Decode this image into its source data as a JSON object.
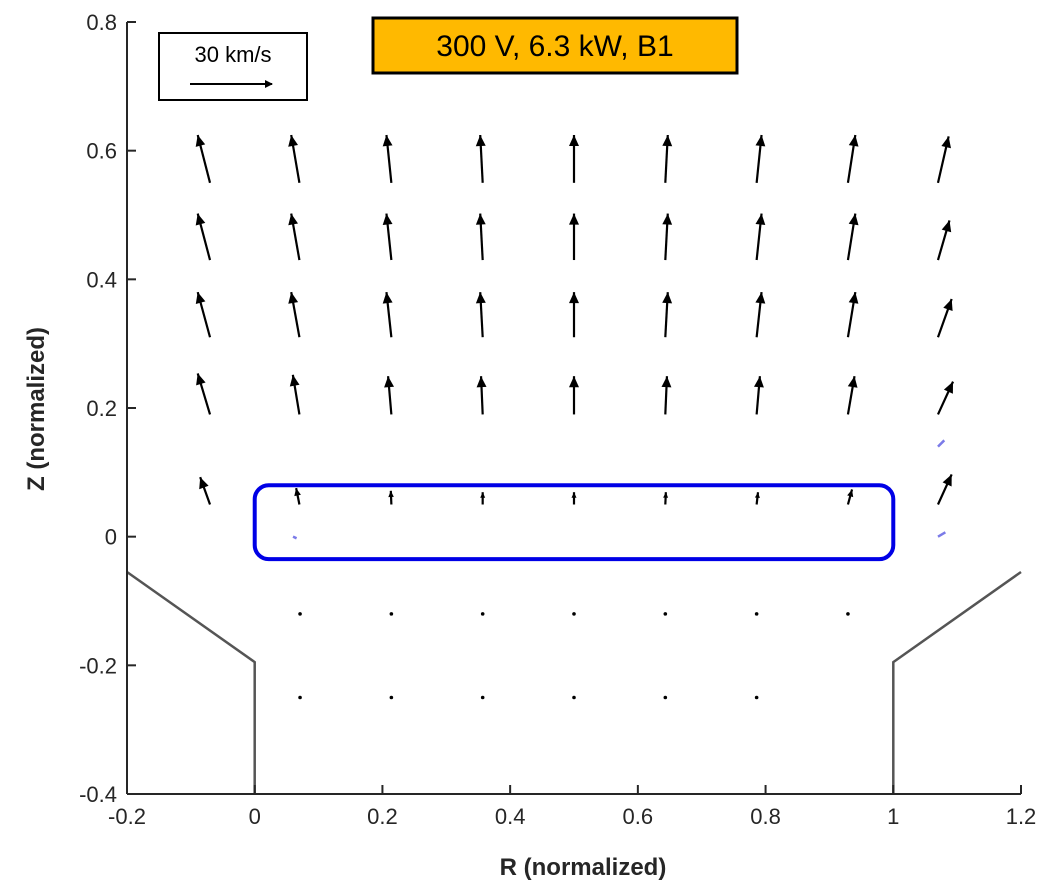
{
  "chart_data": {
    "type": "quiver",
    "title": "300 V, 6.3 kW, B1",
    "title_box_color": "#FFB900",
    "xlabel": "R (normalized)",
    "ylabel": "Z (normalized)",
    "xlim": [
      -0.2,
      1.2
    ],
    "ylim": [
      -0.4,
      0.8
    ],
    "xticks": [
      "-0.2",
      "0",
      "0.2",
      "0.4",
      "0.6",
      "0.8",
      "1",
      "1.2"
    ],
    "yticks": [
      "-0.4",
      "-0.2",
      "0",
      "0.2",
      "0.4",
      "0.6",
      "0.8"
    ],
    "grid": false,
    "scale_reference": {
      "label": "30 km/s",
      "magnitude_kms": 30
    },
    "channel_walls": [
      {
        "name": "inner-wall",
        "points": [
          [
            -0.2,
            -0.055
          ],
          [
            0.0,
            -0.195
          ],
          [
            0.0,
            -0.4
          ]
        ]
      },
      {
        "name": "outer-wall",
        "points": [
          [
            1.2,
            -0.055
          ],
          [
            1.0,
            -0.195
          ],
          [
            1.0,
            -0.4
          ]
        ]
      }
    ],
    "highlight_region": {
      "x": [
        0.0,
        1.0
      ],
      "z": [
        -0.035,
        0.08
      ],
      "color": "#0000E6"
    },
    "vector_color": "#000000",
    "secondary_vector_color": "#7B7BE8",
    "vectors": [
      {
        "r": -0.07,
        "z": 0.55,
        "vr": -4.5,
        "vz": 17.5
      },
      {
        "r": 0.07,
        "z": 0.55,
        "vr": -3.0,
        "vz": 17.5
      },
      {
        "r": 0.214,
        "z": 0.55,
        "vr": -1.8,
        "vz": 17.5
      },
      {
        "r": 0.357,
        "z": 0.55,
        "vr": -0.9,
        "vz": 17.5
      },
      {
        "r": 0.5,
        "z": 0.55,
        "vr": 0.0,
        "vz": 17.5
      },
      {
        "r": 0.643,
        "z": 0.55,
        "vr": 0.9,
        "vz": 17.5
      },
      {
        "r": 0.786,
        "z": 0.55,
        "vr": 1.8,
        "vz": 17.5
      },
      {
        "r": 0.929,
        "z": 0.55,
        "vr": 2.7,
        "vz": 17.5
      },
      {
        "r": 1.07,
        "z": 0.55,
        "vr": 3.9,
        "vz": 17.0
      },
      {
        "r": -0.07,
        "z": 0.43,
        "vr": -4.5,
        "vz": 17.0
      },
      {
        "r": 0.07,
        "z": 0.43,
        "vr": -3.0,
        "vz": 17.0
      },
      {
        "r": 0.214,
        "z": 0.43,
        "vr": -1.8,
        "vz": 17.0
      },
      {
        "r": 0.357,
        "z": 0.43,
        "vr": -0.9,
        "vz": 17.0
      },
      {
        "r": 0.5,
        "z": 0.43,
        "vr": 0.0,
        "vz": 17.0
      },
      {
        "r": 0.643,
        "z": 0.43,
        "vr": 0.9,
        "vz": 17.0
      },
      {
        "r": 0.786,
        "z": 0.43,
        "vr": 1.8,
        "vz": 17.0
      },
      {
        "r": 0.929,
        "z": 0.43,
        "vr": 2.7,
        "vz": 17.0
      },
      {
        "r": 1.07,
        "z": 0.43,
        "vr": 4.2,
        "vz": 14.5
      },
      {
        "r": -0.07,
        "z": 0.31,
        "vr": -4.5,
        "vz": 16.5
      },
      {
        "r": 0.07,
        "z": 0.31,
        "vr": -3.0,
        "vz": 16.5
      },
      {
        "r": 0.214,
        "z": 0.31,
        "vr": -1.8,
        "vz": 16.5
      },
      {
        "r": 0.357,
        "z": 0.31,
        "vr": -0.9,
        "vz": 16.5
      },
      {
        "r": 0.5,
        "z": 0.31,
        "vr": 0.0,
        "vz": 16.5
      },
      {
        "r": 0.643,
        "z": 0.31,
        "vr": 0.9,
        "vz": 16.5
      },
      {
        "r": 0.786,
        "z": 0.31,
        "vr": 1.8,
        "vz": 16.5
      },
      {
        "r": 0.929,
        "z": 0.31,
        "vr": 2.7,
        "vz": 16.5
      },
      {
        "r": 1.07,
        "z": 0.31,
        "vr": 5.0,
        "vz": 14.0
      },
      {
        "r": -0.07,
        "z": 0.19,
        "vr": -4.5,
        "vz": 15.0
      },
      {
        "r": 0.07,
        "z": 0.19,
        "vr": -2.4,
        "vz": 14.5
      },
      {
        "r": 0.214,
        "z": 0.19,
        "vr": -1.2,
        "vz": 14.0
      },
      {
        "r": 0.357,
        "z": 0.19,
        "vr": -0.6,
        "vz": 14.0
      },
      {
        "r": 0.5,
        "z": 0.19,
        "vr": 0.0,
        "vz": 14.0
      },
      {
        "r": 0.643,
        "z": 0.19,
        "vr": 0.6,
        "vz": 14.0
      },
      {
        "r": 0.786,
        "z": 0.19,
        "vr": 1.2,
        "vz": 14.0
      },
      {
        "r": 0.929,
        "z": 0.19,
        "vr": 2.4,
        "vz": 14.0
      },
      {
        "r": 1.07,
        "z": 0.19,
        "vr": 5.5,
        "vz": 12.0
      },
      {
        "r": -0.07,
        "z": 0.05,
        "vr": -3.6,
        "vz": 10.0
      },
      {
        "r": 0.07,
        "z": 0.05,
        "vr": -1.2,
        "vz": 6.0
      },
      {
        "r": 0.214,
        "z": 0.05,
        "vr": -0.2,
        "vz": 5.0
      },
      {
        "r": 0.357,
        "z": 0.05,
        "vr": 0.0,
        "vz": 4.5
      },
      {
        "r": 0.5,
        "z": 0.05,
        "vr": 0.0,
        "vz": 4.5
      },
      {
        "r": 0.643,
        "z": 0.05,
        "vr": 0.2,
        "vz": 4.5
      },
      {
        "r": 0.786,
        "z": 0.05,
        "vr": 0.5,
        "vz": 4.5
      },
      {
        "r": 0.929,
        "z": 0.05,
        "vr": 1.5,
        "vz": 5.5
      },
      {
        "r": 1.07,
        "z": 0.05,
        "vr": 5.0,
        "vz": 11.0
      },
      {
        "r": 0.071,
        "z": -0.12,
        "vr": 0.0,
        "vz": 0.6
      },
      {
        "r": 0.214,
        "z": -0.12,
        "vr": 0.0,
        "vz": 0.6
      },
      {
        "r": 0.357,
        "z": -0.12,
        "vr": 0.0,
        "vz": 0.6
      },
      {
        "r": 0.5,
        "z": -0.12,
        "vr": 0.0,
        "vz": 0.6
      },
      {
        "r": 0.643,
        "z": -0.12,
        "vr": 0.0,
        "vz": 0.6
      },
      {
        "r": 0.786,
        "z": -0.12,
        "vr": 0.0,
        "vz": 0.6
      },
      {
        "r": 0.929,
        "z": -0.12,
        "vr": 0.3,
        "vz": 0.6
      },
      {
        "r": 0.071,
        "z": -0.25,
        "vr": 0.0,
        "vz": 0.0
      },
      {
        "r": 0.214,
        "z": -0.25,
        "vr": 0.0,
        "vz": 0.0
      },
      {
        "r": 0.357,
        "z": -0.25,
        "vr": 0.0,
        "vz": 0.0
      },
      {
        "r": 0.5,
        "z": -0.25,
        "vr": 0.0,
        "vz": 0.0
      },
      {
        "r": 0.643,
        "z": -0.25,
        "vr": 0.0,
        "vz": 0.0
      },
      {
        "r": 0.786,
        "z": -0.25,
        "vr": 0.0,
        "vz": 0.0
      }
    ],
    "secondary_vectors": [
      {
        "r": 0.06,
        "z": 0.0,
        "vr": 1.3,
        "vz": -0.6
      },
      {
        "r": 1.07,
        "z": 0.14,
        "vr": 2.3,
        "vz": 2.3
      },
      {
        "r": 1.07,
        "z": 0.0,
        "vr": 2.7,
        "vz": 1.6
      }
    ]
  }
}
